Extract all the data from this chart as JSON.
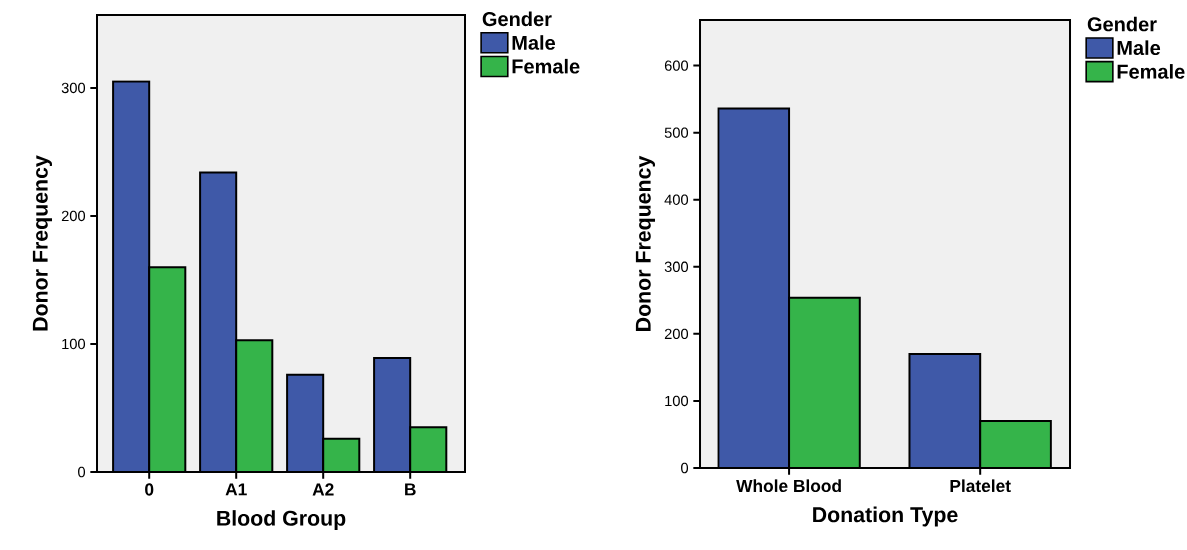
{
  "chart_data": [
    {
      "type": "bar",
      "xlabel": "Blood Group",
      "ylabel": "Donor Frequency",
      "legend_title": "Gender",
      "legend": "top right",
      "categories": [
        "0",
        "A1",
        "A2",
        "B"
      ],
      "series": [
        {
          "name": "Male",
          "color": "#3f59a8",
          "values": [
            305,
            234,
            76,
            89
          ]
        },
        {
          "name": "Female",
          "color": "#35b44a",
          "values": [
            160,
            103,
            26,
            35
          ]
        }
      ],
      "ylim": [
        0,
        357
      ],
      "yticks": [
        0,
        100,
        200,
        300
      ]
    },
    {
      "type": "bar",
      "xlabel": "Donation Type",
      "ylabel": "Donor Frequency",
      "legend_title": "Gender",
      "legend": "top right",
      "categories": [
        "Whole Blood",
        "Platelet"
      ],
      "series": [
        {
          "name": "Male",
          "color": "#3f59a8",
          "values": [
            536,
            170
          ]
        },
        {
          "name": "Female",
          "color": "#35b44a",
          "values": [
            254,
            70
          ]
        }
      ],
      "ylim": [
        0,
        668
      ],
      "yticks": [
        0,
        100,
        200,
        300,
        400,
        500,
        600
      ]
    }
  ]
}
